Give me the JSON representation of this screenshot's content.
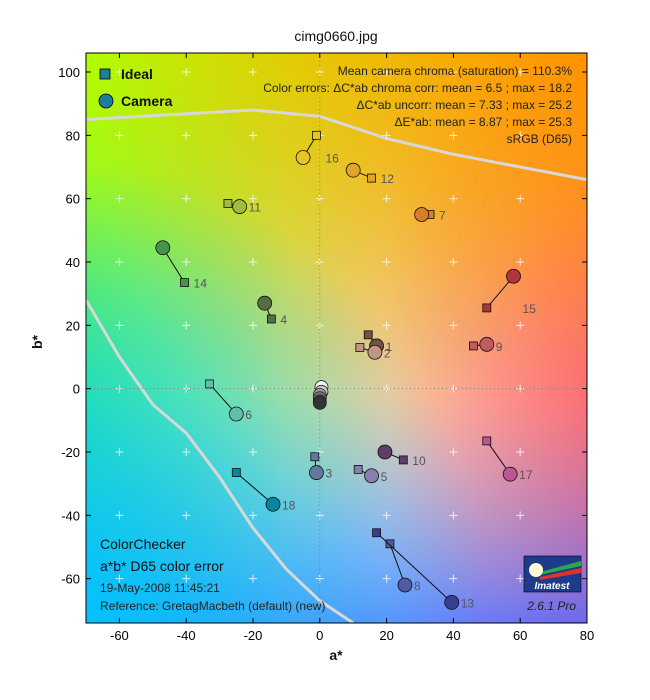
{
  "chart_data": {
    "type": "scatter",
    "title": "cimg0660.jpg",
    "xlabel": "a*",
    "ylabel": "b*",
    "xlim": [
      -70,
      80
    ],
    "ylim": [
      -74,
      106
    ],
    "xticks": [
      -60,
      -40,
      -20,
      0,
      20,
      40,
      60,
      80
    ],
    "yticks": [
      -60,
      -40,
      -20,
      0,
      20,
      40,
      60,
      80,
      100
    ],
    "grid": true,
    "legend_position": "top-left",
    "legend": [
      {
        "label": "Ideal",
        "marker": "square"
      },
      {
        "label": "Camera",
        "marker": "circle"
      }
    ],
    "stats": [
      "Mean camera chroma (saturation) = 110.3%",
      "Color errors: ΔC*ab chroma corr:  mean = 6.5 ;  max = 18.2",
      "ΔC*ab uncorr:  mean = 7.33 ;  max = 25.2",
      "ΔE*ab:  mean = 8.87 ;  max = 25.3",
      "sRGB (D65)"
    ],
    "notes": [
      "ColorChecker",
      "a*b* D65 color error",
      "19-May-2008 11:45:21",
      "Reference: GretagMacbeth (default) (new)"
    ],
    "logo_text": "Imatest",
    "version": "2.6.1  Pro",
    "patches": [
      {
        "id": "1",
        "ideal": [
          14.5,
          17.0
        ],
        "camera": [
          17.0,
          13.5
        ],
        "color": "#735244"
      },
      {
        "id": "2",
        "ideal": [
          12.0,
          13.0
        ],
        "camera": [
          16.5,
          11.5
        ],
        "color": "#c29682"
      },
      {
        "id": "3",
        "ideal": [
          -1.5,
          -21.5
        ],
        "camera": [
          -1.0,
          -26.5
        ],
        "color": "#627a9d"
      },
      {
        "id": "4",
        "ideal": [
          -14.5,
          22.0
        ],
        "camera": [
          -16.5,
          27.0
        ],
        "color": "#576c43"
      },
      {
        "id": "5",
        "ideal": [
          11.5,
          -25.5
        ],
        "camera": [
          15.5,
          -27.5
        ],
        "color": "#8580b1"
      },
      {
        "id": "6",
        "ideal": [
          -33.0,
          1.5
        ],
        "camera": [
          -25.0,
          -8.0
        ],
        "color": "#67bdaa"
      },
      {
        "id": "7",
        "ideal": [
          33.0,
          55.0
        ],
        "camera": [
          30.5,
          55.0
        ],
        "color": "#d67e2c"
      },
      {
        "id": "8",
        "ideal": [
          21.0,
          -49.0
        ],
        "camera": [
          25.5,
          -62.0
        ],
        "color": "#505ba6"
      },
      {
        "id": "9",
        "ideal": [
          46.0,
          13.5
        ],
        "camera": [
          50.0,
          14.0
        ],
        "color": "#c15a63"
      },
      {
        "id": "10",
        "ideal": [
          25.0,
          -22.5
        ],
        "camera": [
          19.5,
          -20.0
        ],
        "color": "#5e3c6c"
      },
      {
        "id": "11",
        "ideal": [
          -27.5,
          58.5
        ],
        "camera": [
          -24.0,
          57.5
        ],
        "color": "#9dbc40"
      },
      {
        "id": "12",
        "ideal": [
          15.5,
          66.5
        ],
        "camera": [
          10.0,
          69.0
        ],
        "color": "#e0a32e"
      },
      {
        "id": "13",
        "ideal": [
          17.0,
          -45.5
        ],
        "camera": [
          39.5,
          -67.5
        ],
        "color": "#383d96"
      },
      {
        "id": "14",
        "ideal": [
          -40.5,
          33.5
        ],
        "camera": [
          -47.0,
          44.5
        ],
        "color": "#469449"
      },
      {
        "id": "15",
        "ideal": [
          50.0,
          25.5
        ],
        "camera": [
          58.0,
          35.5
        ],
        "color": "#af363c"
      },
      {
        "id": "16",
        "ideal": [
          -1.0,
          80.0
        ],
        "camera": [
          -5.0,
          73.0
        ],
        "color": "#e7c71f"
      },
      {
        "id": "17",
        "ideal": [
          50.0,
          -16.5
        ],
        "camera": [
          57.0,
          -27.0
        ],
        "color": "#bb5695"
      },
      {
        "id": "18",
        "ideal": [
          -25.0,
          -26.5
        ],
        "camera": [
          -14.0,
          -36.5
        ],
        "color": "#0885a1"
      }
    ],
    "neutral_points": [
      {
        "camera": [
          0.5,
          0.5
        ],
        "color": "#f3f3f2"
      },
      {
        "camera": [
          0.5,
          -1.0
        ],
        "color": "#c8c8c8"
      },
      {
        "camera": [
          0.0,
          -2.0
        ],
        "color": "#a0a0a0"
      },
      {
        "camera": [
          0.0,
          -3.0
        ],
        "color": "#7a7a79"
      },
      {
        "camera": [
          0.0,
          -4.0
        ],
        "color": "#555555"
      },
      {
        "camera": [
          0.0,
          -4.5
        ],
        "color": "#343434"
      }
    ],
    "gamut_upper": [
      [
        -70,
        85
      ],
      [
        -20,
        88
      ],
      [
        0,
        86
      ],
      [
        20,
        79
      ],
      [
        40,
        74
      ],
      [
        60,
        70
      ],
      [
        80,
        66
      ]
    ],
    "gamut_lower": [
      [
        -70,
        28
      ],
      [
        -60,
        10
      ],
      [
        -50,
        -5
      ],
      [
        -40,
        -14
      ],
      [
        -30,
        -28
      ],
      [
        -20,
        -44
      ],
      [
        -10,
        -57
      ],
      [
        0,
        -67
      ],
      [
        10,
        -74
      ]
    ]
  }
}
